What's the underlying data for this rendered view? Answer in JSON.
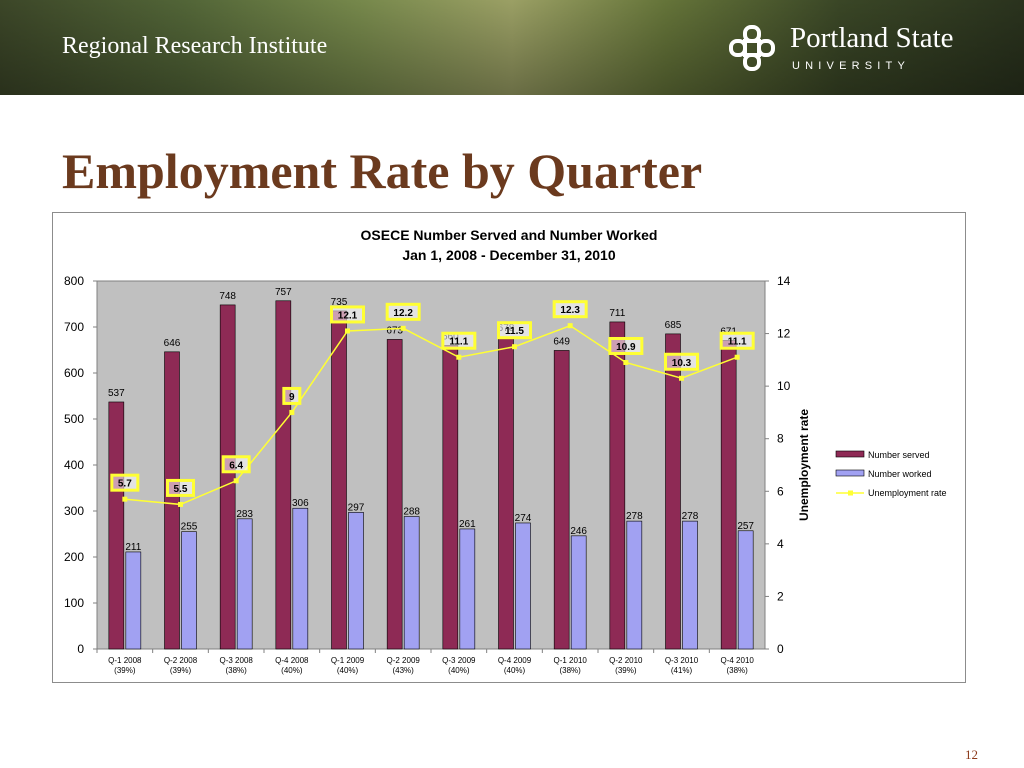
{
  "header": {
    "institute": "Regional Research Institute",
    "university_name": "Portland State",
    "university_sub": "UNIVERSITY"
  },
  "slide": {
    "title": "Employment Rate by Quarter",
    "number": "12"
  },
  "colors": {
    "served": "#8e2a55",
    "worked": "#a1a1f2",
    "rate": "#ffff33",
    "plot_bg": "#c0c0c0",
    "title": "#6b3a1e"
  },
  "chart_data": {
    "type": "bar",
    "title": "OSECE Number Served and Number Worked",
    "subtitle": "Jan 1, 2008 - December 31, 2010",
    "categories": [
      "Q-1 2008",
      "Q-2 2008",
      "Q-3 2008",
      "Q-4 2008",
      "Q-1 2009",
      "Q-2 2009",
      "Q-3 2009",
      "Q-4 2009",
      "Q-1 2010",
      "Q-2 2010",
      "Q-3 2010",
      "Q-4 2010"
    ],
    "category_sublabels": [
      "(39%)",
      "(39%)",
      "(38%)",
      "(40%)",
      "(40%)",
      "(43%)",
      "(40%)",
      "(40%)",
      "(38%)",
      "(39%)",
      "(41%)",
      "(38%)"
    ],
    "series": [
      {
        "name": "Number served",
        "type": "bar",
        "axis": "left",
        "values": [
          537,
          646,
          748,
          757,
          735,
          673,
          660,
          678,
          649,
          711,
          685,
          671
        ]
      },
      {
        "name": "Number worked",
        "type": "bar",
        "axis": "left",
        "values": [
          211,
          255,
          283,
          306,
          297,
          288,
          261,
          274,
          246,
          278,
          278,
          257
        ]
      },
      {
        "name": "Unemployment rate",
        "type": "line",
        "axis": "right",
        "values": [
          5.7,
          5.5,
          6.4,
          9,
          12.1,
          12.2,
          11.1,
          11.5,
          12.3,
          10.9,
          10.3,
          11.1
        ]
      }
    ],
    "y_left": {
      "min": 0,
      "max": 800,
      "ticks": [
        0,
        100,
        200,
        300,
        400,
        500,
        600,
        700,
        800
      ]
    },
    "y_right": {
      "min": 0,
      "max": 14,
      "ticks": [
        0,
        2,
        4,
        6,
        8,
        10,
        12,
        14
      ],
      "label": "Unemployment rate"
    },
    "grid": false,
    "legend_position": "right"
  }
}
